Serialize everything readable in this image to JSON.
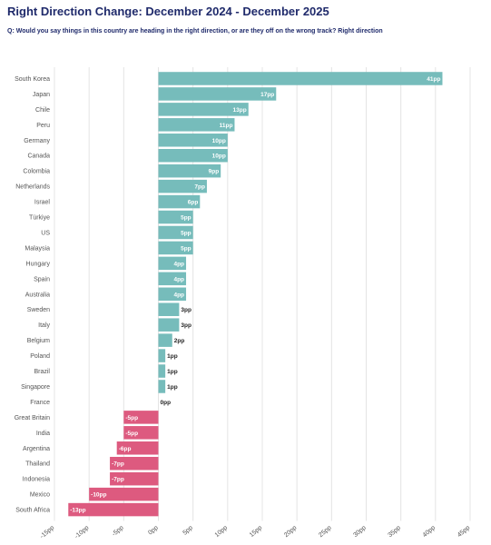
{
  "title": "Right Direction Change: December 2024 - December 2025",
  "subtitle": "Q: Would you say things in this country are heading in the right direction, or are they off on the wrong track? Right direction",
  "colors": {
    "positive": "#76bcbb",
    "negative": "#dd5a7f",
    "title": "#1f2a6b",
    "grid": "#e4e4e4"
  },
  "chart_data": {
    "type": "bar",
    "orientation": "horizontal",
    "title": "Right Direction Change: December 2024 - December 2025",
    "categories": [
      "South Korea",
      "Japan",
      "Chile",
      "Peru",
      "Germany",
      "Canada",
      "Colombia",
      "Netherlands",
      "Israel",
      "Türkiye",
      "US",
      "Malaysia",
      "Hungary",
      "Spain",
      "Australia",
      "Sweden",
      "Italy",
      "Belgium",
      "Poland",
      "Brazil",
      "Singapore",
      "France",
      "Great Britain",
      "India",
      "Argentina",
      "Thailand",
      "Indonesia",
      "Mexico",
      "South Africa"
    ],
    "values": [
      41,
      17,
      13,
      11,
      10,
      10,
      9,
      7,
      6,
      5,
      5,
      5,
      4,
      4,
      4,
      3,
      3,
      2,
      1,
      1,
      1,
      0,
      -5,
      -5,
      -6,
      -7,
      -7,
      -10,
      -13
    ],
    "value_labels": [
      "41pp",
      "17pp",
      "13pp",
      "11pp",
      "10pp",
      "10pp",
      "9pp",
      "7pp",
      "6pp",
      "5pp",
      "5pp",
      "5pp",
      "4pp",
      "4pp",
      "4pp",
      "3pp",
      "3pp",
      "2pp",
      "1pp",
      "1pp",
      "1pp",
      "0pp",
      "-5pp",
      "-5pp",
      "-6pp",
      "-7pp",
      "-7pp",
      "-10pp",
      "-13pp"
    ],
    "xlim": [
      -15,
      45
    ],
    "xticks": [
      -15,
      -10,
      -5,
      0,
      5,
      10,
      15,
      20,
      25,
      30,
      35,
      40,
      45
    ],
    "xtick_labels": [
      "-15pp",
      "-10pp",
      "-5pp",
      "0pp",
      "5pp",
      "10pp",
      "15pp",
      "20pp",
      "25pp",
      "30pp",
      "35pp",
      "40pp",
      "45pp"
    ],
    "grid": true
  }
}
